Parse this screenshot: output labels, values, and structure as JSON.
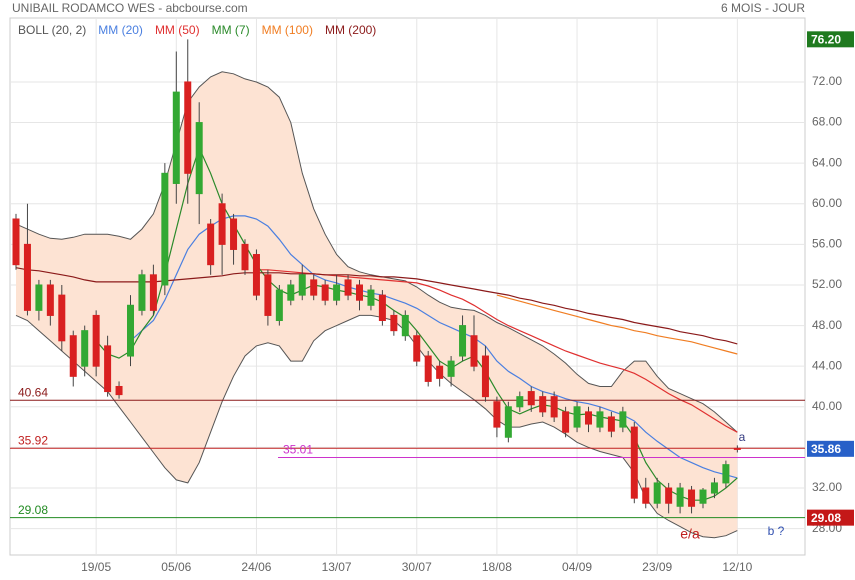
{
  "chart_data": {
    "type": "candlestick",
    "title": "UNIBAIL RODAMCO WES - abcbourse.com",
    "subtitle": "6 MOIS - JOUR",
    "categories": [
      null,
      null,
      null,
      null,
      null,
      null,
      null,
      "19/05",
      null,
      null,
      null,
      null,
      null,
      null,
      "05/06",
      null,
      null,
      null,
      null,
      null,
      null,
      "24/06",
      null,
      null,
      null,
      null,
      null,
      null,
      "13/07",
      null,
      null,
      null,
      null,
      null,
      null,
      "30/07",
      null,
      null,
      null,
      null,
      null,
      null,
      "18/08",
      null,
      null,
      null,
      null,
      null,
      null,
      "04/09",
      null,
      null,
      null,
      null,
      null,
      null,
      "23/09",
      null,
      null,
      null,
      null,
      null,
      null,
      "12/10"
    ],
    "open": [
      58.5,
      56,
      49.5,
      52,
      51,
      47,
      44,
      49,
      46,
      42,
      45,
      49.5,
      53,
      52,
      62,
      72,
      61,
      58,
      60,
      58.5,
      56,
      55,
      53,
      48.5,
      50.5,
      51,
      52.5,
      52,
      50.5,
      52.5,
      52,
      50,
      51,
      49,
      47,
      47,
      45,
      44,
      43,
      45,
      47,
      45,
      40.5,
      37,
      40,
      41.5,
      41,
      41,
      39.5,
      38,
      39.5,
      38,
      39,
      38,
      38,
      32,
      30.5,
      32,
      30.2,
      31.8,
      30.5,
      31.5,
      32.5,
      35.9
    ],
    "close": [
      54,
      49.5,
      52,
      49,
      46.5,
      43,
      47.5,
      44,
      41.5,
      41.2,
      50,
      53,
      49.5,
      63,
      71,
      63,
      68,
      54,
      56,
      55.5,
      53.5,
      51,
      49,
      51.5,
      52,
      53,
      51,
      50.5,
      52,
      51,
      50.5,
      51.5,
      48.5,
      47.5,
      49,
      44.5,
      42.5,
      42.8,
      44.5,
      48,
      44,
      41,
      38,
      40,
      41,
      40.2,
      39.5,
      39,
      37.5,
      40,
      38.3,
      39.5,
      37.6,
      39.5,
      31,
      30.5,
      32.5,
      30.5,
      32,
      30.2,
      31.8,
      32.5,
      34.3,
      35.86
    ],
    "high": [
      59,
      60,
      52.5,
      52.5,
      52,
      47.5,
      48,
      49.5,
      47,
      42.5,
      51,
      53.5,
      54,
      64,
      75,
      76.2,
      70,
      58.5,
      61,
      59,
      56.5,
      55.5,
      53.5,
      52,
      52.5,
      54,
      53,
      52.5,
      53,
      53,
      52.5,
      52,
      51.5,
      49.5,
      49.5,
      47.5,
      45.5,
      44.5,
      45,
      49,
      49,
      46,
      41,
      40.5,
      41.5,
      42,
      41.5,
      41.5,
      40,
      40.5,
      40,
      40,
      39.5,
      40,
      38.5,
      33,
      33,
      32.5,
      32.5,
      32.2,
      32,
      33,
      34.7,
      36.2
    ],
    "low": [
      53.5,
      49,
      48.5,
      48,
      45.5,
      42,
      43,
      43,
      41,
      40.8,
      44,
      49,
      49,
      51,
      60,
      60,
      58,
      53,
      53,
      54,
      53,
      50.5,
      48,
      48,
      50,
      50.5,
      50.5,
      50,
      50,
      50.5,
      49.5,
      49.5,
      48,
      47,
      46.5,
      44,
      42,
      42,
      42,
      44.5,
      43.5,
      40.5,
      37,
      36.5,
      39.5,
      39.5,
      39,
      38.5,
      37,
      37.5,
      37.5,
      37.5,
      37,
      37.5,
      30.5,
      30,
      30,
      29.5,
      29.5,
      29.5,
      30,
      31,
      32,
      35.5
    ],
    "up_color": "#33a833",
    "down_color": "#d92020",
    "bollinger": {
      "name": "BOLL (20, 2)",
      "color": "#555555",
      "fill": "#fde3d3",
      "upper": [
        58,
        57.5,
        57,
        56.6,
        56.5,
        56.7,
        57,
        57,
        57,
        56.8,
        56.5,
        57.5,
        59,
        62,
        66,
        70,
        71.5,
        72.5,
        73,
        72.8,
        72.3,
        72,
        71.5,
        70.5,
        68,
        63,
        59.5,
        57,
        55,
        53.8,
        53.3,
        53,
        52.8,
        52.6,
        52.4,
        51.8,
        51,
        50.3,
        49.8,
        49.6,
        49.5,
        49,
        48.3,
        47.8,
        47.2,
        46.6,
        46,
        45.2,
        44.3,
        43.2,
        42.3,
        42,
        42,
        43.5,
        44.5,
        44.5,
        43,
        41.8,
        41.3,
        40.8,
        40.3,
        39.5,
        38.5,
        37.5
      ],
      "lower": [
        49,
        48.5,
        47.5,
        46.5,
        45.5,
        44.5,
        43.5,
        42.5,
        41.5,
        40,
        38.5,
        37,
        35.5,
        34,
        32.8,
        32.5,
        34.5,
        37.5,
        40.5,
        43,
        45,
        46,
        46.3,
        46,
        44.5,
        44.5,
        46.5,
        47.5,
        48,
        48.5,
        49,
        49,
        48.8,
        48.5,
        47.5,
        46,
        44.5,
        43.3,
        42.3,
        41.5,
        40.7,
        39.8,
        38.7,
        38,
        38,
        38.3,
        38.5,
        38,
        37.3,
        36.5,
        36,
        35.6,
        35.3,
        35,
        33.5,
        31,
        29.5,
        28.8,
        28.2,
        27.6,
        27.2,
        27.1,
        27.3,
        27.8
      ]
    },
    "series": [
      {
        "name": "MM (20)",
        "color": "#4a7fe0",
        "values": [
          null,
          null,
          null,
          null,
          null,
          null,
          null,
          null,
          null,
          null,
          46.5,
          47.5,
          48.5,
          50.5,
          53,
          55.5,
          57,
          57.8,
          58.5,
          58.8,
          58.8,
          58.5,
          57.8,
          56.5,
          55,
          54,
          53,
          52.5,
          52.2,
          51.8,
          51.5,
          51.2,
          51,
          50.6,
          50.2,
          49.7,
          49,
          48.3,
          47.8,
          47.3,
          46.8,
          46,
          44.5,
          43.5,
          42.8,
          42,
          41.5,
          41.2,
          40.8,
          40.5,
          40.3,
          40,
          39.6,
          39.2,
          38.6,
          37.5,
          36.6,
          35.8,
          35,
          34.5,
          34,
          33.6,
          33.3,
          33
        ]
      },
      {
        "name": "MM (50)",
        "color": "#e03030",
        "values": [
          null,
          null,
          null,
          null,
          null,
          null,
          null,
          null,
          null,
          null,
          null,
          null,
          null,
          null,
          null,
          null,
          null,
          null,
          null,
          null,
          null,
          53.5,
          53.5,
          53.4,
          53.3,
          53.2,
          53.1,
          53,
          52.9,
          52.8,
          52.7,
          52.6,
          52.5,
          52.4,
          52.3,
          52.2,
          51.9,
          51.5,
          51,
          50.6,
          50,
          49.3,
          48.6,
          48,
          47.5,
          47,
          46.5,
          46,
          45.5,
          45.1,
          44.7,
          44.3,
          44,
          43.7,
          43.3,
          42.7,
          42,
          41.3,
          40.7,
          40.2,
          39.5,
          38.8,
          38.1,
          37.5
        ]
      },
      {
        "name": "MM (7)",
        "color": "#2a8a2a",
        "values": [
          null,
          null,
          null,
          null,
          null,
          null,
          null,
          46.5,
          45.2,
          44.8,
          45.5,
          47.5,
          49,
          53,
          57.5,
          62,
          65.5,
          63,
          60,
          58,
          56,
          54,
          52.5,
          51.5,
          51,
          51.5,
          52,
          51.8,
          51.5,
          51.3,
          51,
          50.8,
          50.3,
          49.5,
          48.8,
          47.5,
          46,
          44.5,
          43.8,
          44.5,
          45,
          43.5,
          41.5,
          39.8,
          39.3,
          39.8,
          40.2,
          40,
          39.5,
          39.2,
          39.3,
          39,
          38.8,
          38.6,
          37,
          34.5,
          32.8,
          31.8,
          31.2,
          30.8,
          30.8,
          31.2,
          32,
          33
        ]
      },
      {
        "name": "MM (100)",
        "color": "#f07d22",
        "values": [
          null,
          null,
          null,
          null,
          null,
          null,
          null,
          null,
          null,
          null,
          null,
          null,
          null,
          null,
          null,
          null,
          null,
          null,
          null,
          null,
          null,
          null,
          null,
          null,
          null,
          null,
          null,
          null,
          null,
          null,
          null,
          null,
          null,
          null,
          null,
          null,
          null,
          null,
          null,
          null,
          null,
          null,
          51,
          50.7,
          50.4,
          50.1,
          49.8,
          49.5,
          49.2,
          48.9,
          48.6,
          48.3,
          48,
          47.8,
          47.5,
          47.3,
          47,
          46.8,
          46.6,
          46.4,
          46.1,
          45.8,
          45.5,
          45.2
        ]
      },
      {
        "name": "MM (200)",
        "color": "#8b1a1a",
        "values": [
          53.7,
          53.5,
          53.4,
          53.2,
          53,
          52.8,
          52.5,
          52.3,
          52.3,
          52.3,
          52.3,
          52.3,
          52.3,
          52.4,
          52.5,
          52.6,
          52.7,
          52.8,
          52.9,
          53.1,
          53.2,
          53.2,
          53.2,
          53.2,
          53.1,
          53.1,
          53.1,
          53,
          53,
          53,
          52.9,
          52.9,
          52.8,
          52.8,
          52.7,
          52.6,
          52.4,
          52.2,
          52,
          51.8,
          51.6,
          51.4,
          51.2,
          51,
          50.7,
          50.5,
          50.2,
          50,
          49.7,
          49.5,
          49.2,
          49,
          48.8,
          48.6,
          48.3,
          48.1,
          47.9,
          47.7,
          47.4,
          47.2,
          47,
          46.7,
          46.5,
          46.2
        ]
      }
    ],
    "levels": [
      {
        "value": 40.64,
        "color": "#8b1a1a"
      },
      {
        "value": 35.92,
        "color": "#c02020"
      },
      {
        "value": 35.01,
        "color": "#cc33cc"
      },
      {
        "value": 29.08,
        "color": "#228b22"
      }
    ],
    "price_tags": [
      {
        "value": 76.2,
        "label": "76.20",
        "color": "#1f7a1f"
      },
      {
        "value": 35.86,
        "color": "#2860c8"
      },
      {
        "value": 29.08,
        "color": "#c41818"
      }
    ],
    "annotations": [
      "a",
      "e/a",
      "b ?"
    ],
    "ylim": [
      25.4,
      78.3
    ],
    "yticks": [
      {
        "value": 28,
        "label": "28.00"
      },
      {
        "value": 32,
        "label": "32.00"
      },
      {
        "value": 36,
        "label": "36.00"
      },
      {
        "value": 40,
        "label": "40.00"
      },
      {
        "value": 44,
        "label": "44.00"
      },
      {
        "value": 48,
        "label": "48.00"
      },
      {
        "value": 52,
        "label": "52.00"
      },
      {
        "value": 56,
        "label": "56.00"
      },
      {
        "value": 60,
        "label": "60.00"
      },
      {
        "value": 64,
        "label": "64.00"
      },
      {
        "value": 68,
        "label": "68.00"
      },
      {
        "value": 72,
        "label": "72.00"
      }
    ],
    "grid": true
  }
}
